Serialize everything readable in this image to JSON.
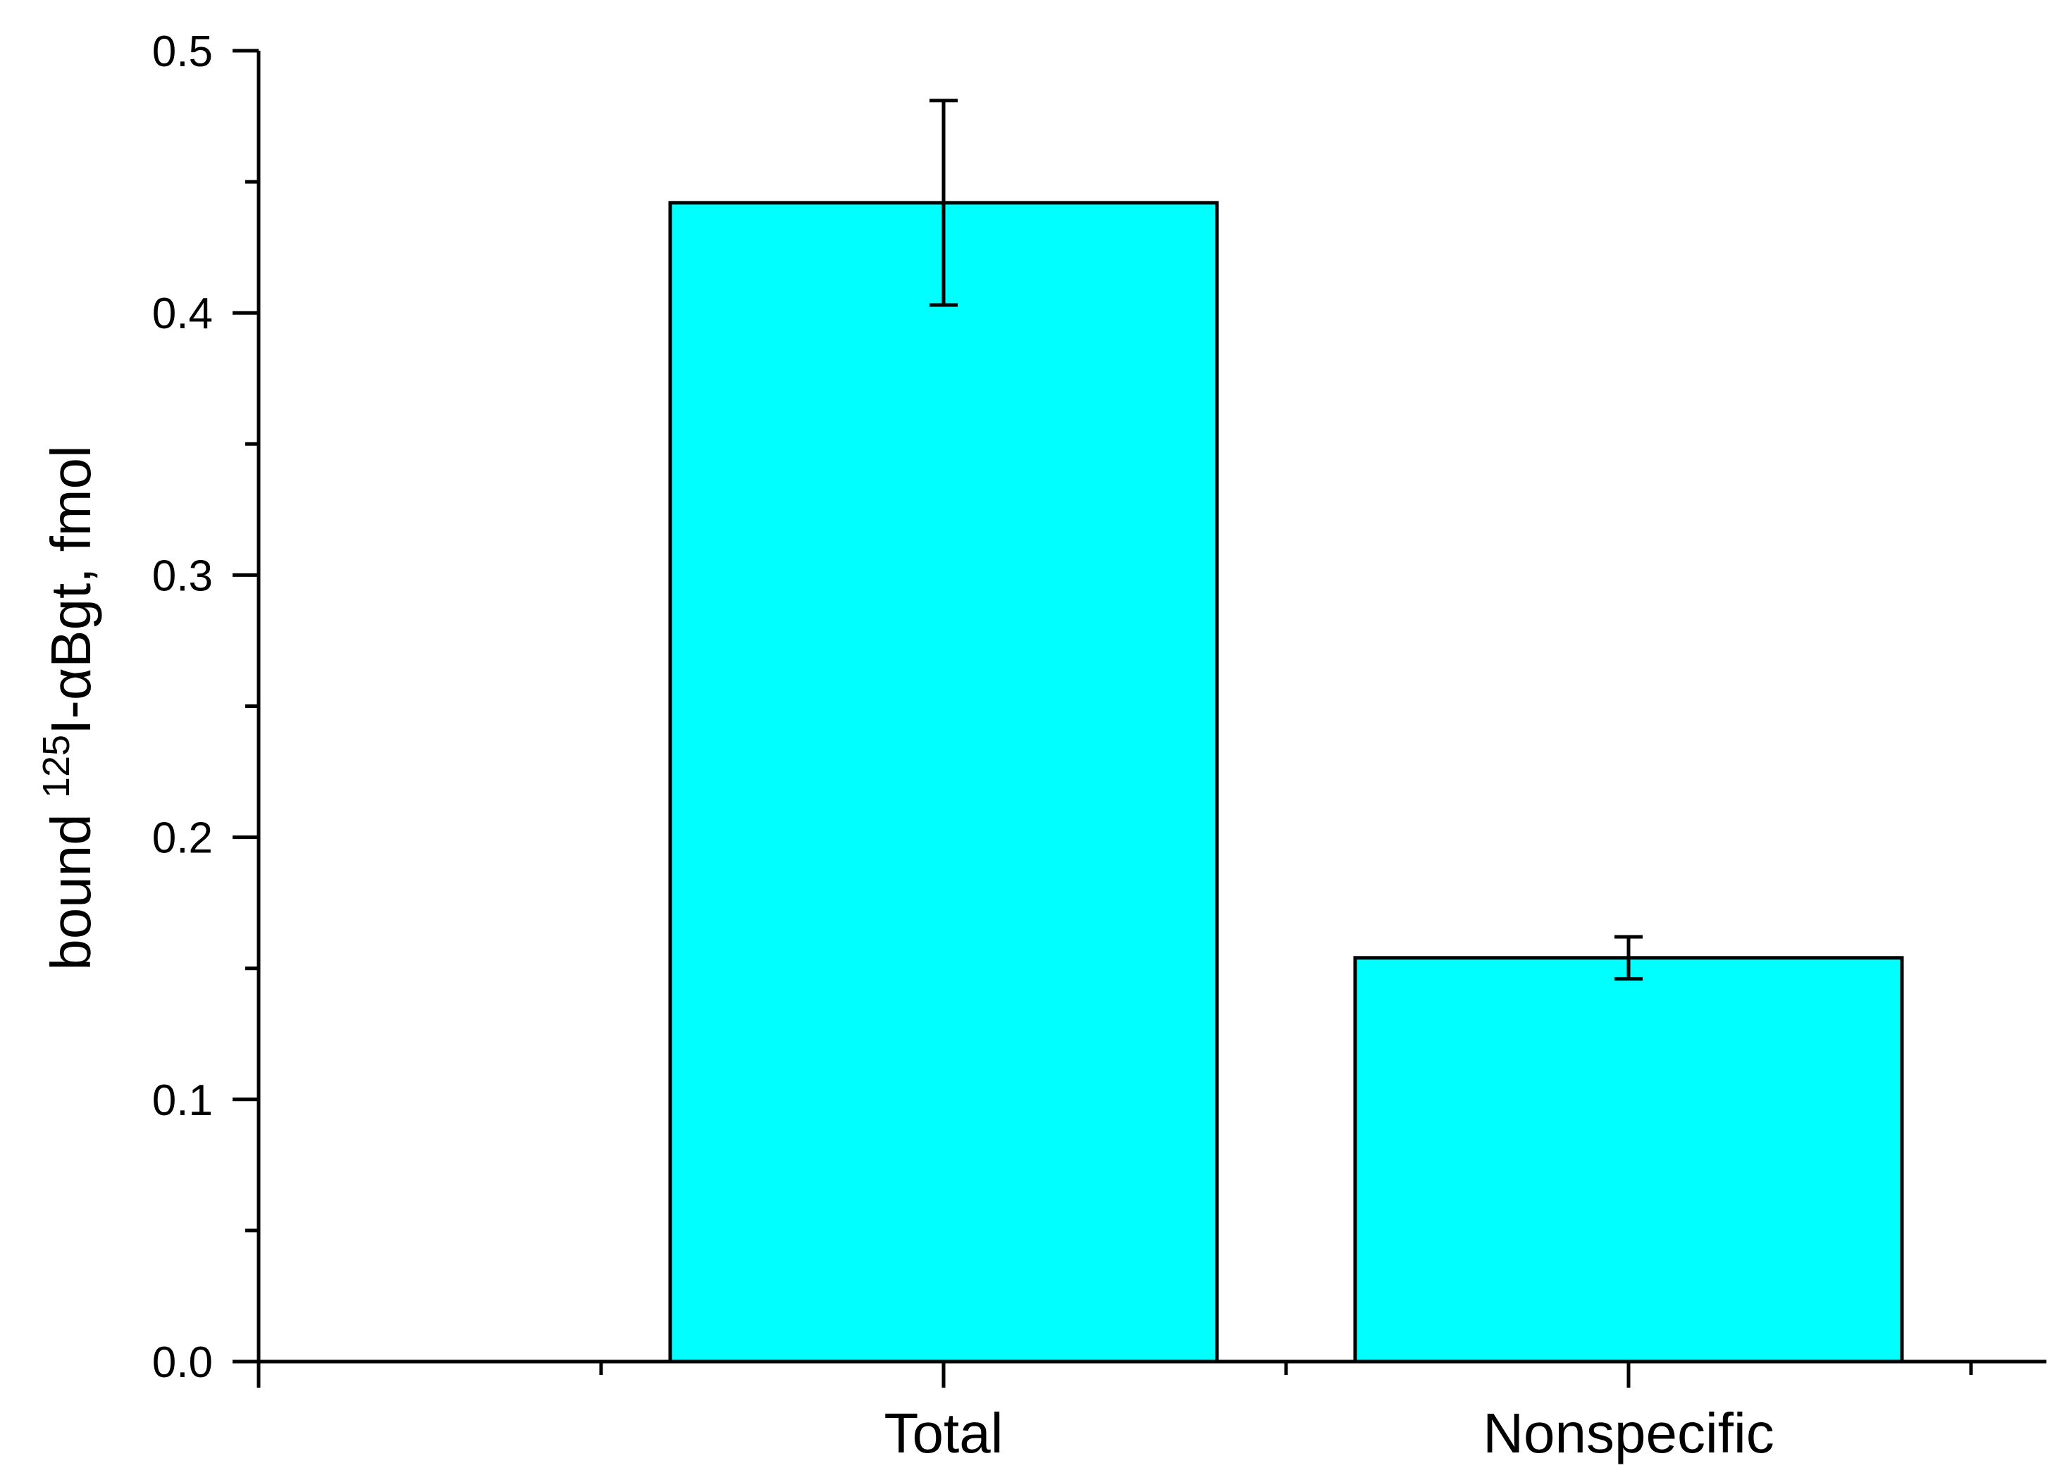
{
  "chart_data": {
    "type": "bar",
    "categories": [
      "Total",
      "Nonspecific"
    ],
    "values": [
      0.442,
      0.154
    ],
    "errors": [
      0.039,
      0.008
    ],
    "ylabel": {
      "prefix": "bound ",
      "superscript": "125",
      "suffix": "I-αBgt, fmol"
    },
    "ylim": [
      0,
      0.5
    ],
    "yticks": [
      "0.0",
      "0.1",
      "0.2",
      "0.3",
      "0.4",
      "0.5"
    ],
    "grid": false,
    "bar_color": "#00FFFF"
  }
}
